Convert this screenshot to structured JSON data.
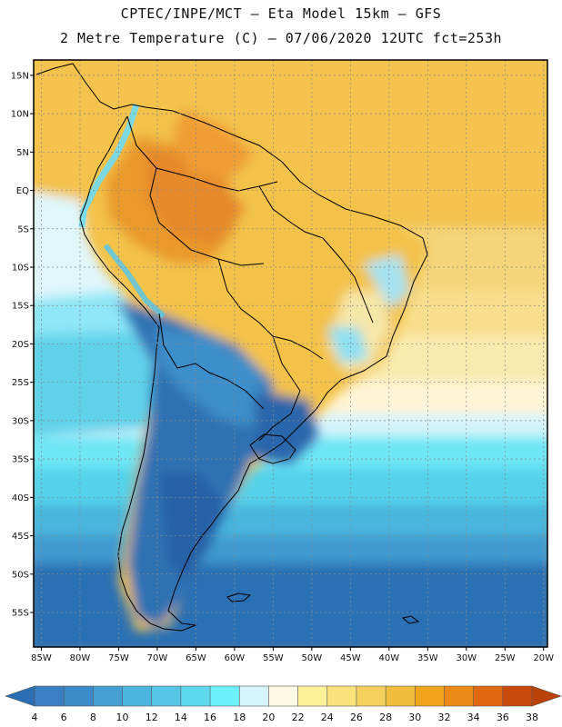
{
  "header": {
    "line1": "CPTEC/INPE/MCT –  Eta Model 15km – GFS",
    "line2": "2 Metre Temperature (C) – 07/06/2020 12UTC fct=253h"
  },
  "map": {
    "lat_ticks": [
      "15N",
      "10N",
      "5N",
      "EQ",
      "5S",
      "10S",
      "15S",
      "20S",
      "25S",
      "30S",
      "35S",
      "40S",
      "45S",
      "50S",
      "55S"
    ],
    "lon_ticks": [
      "85W",
      "80W",
      "75W",
      "70W",
      "65W",
      "60W",
      "55W",
      "50W",
      "45W",
      "40W",
      "35W",
      "30W",
      "25W",
      "20W"
    ],
    "grid": true,
    "extent": {
      "lon_min": -86,
      "lon_max": -19.5,
      "lat_min": -59.5,
      "lat_max": 17
    }
  },
  "colorbar": {
    "labels": [
      "4",
      "6",
      "8",
      "10",
      "12",
      "14",
      "16",
      "18",
      "20",
      "22",
      "24",
      "26",
      "28",
      "30",
      "32",
      "34",
      "36",
      "38"
    ],
    "colors": [
      "#3a7fc4",
      "#3a8bc8",
      "#44a0d3",
      "#4ab5de",
      "#55c6e6",
      "#5ed8ee",
      "#6cf0fb",
      "#d6f4fb",
      "#fff8e2",
      "#fdf29a",
      "#fae27a",
      "#f6d05f",
      "#f0bd3c",
      "#f0a51c",
      "#ec8a18",
      "#e06810",
      "#c84a0c"
    ],
    "low_arrow_color": "#2a6fb4",
    "high_arrow_color": "#b8420a"
  }
}
